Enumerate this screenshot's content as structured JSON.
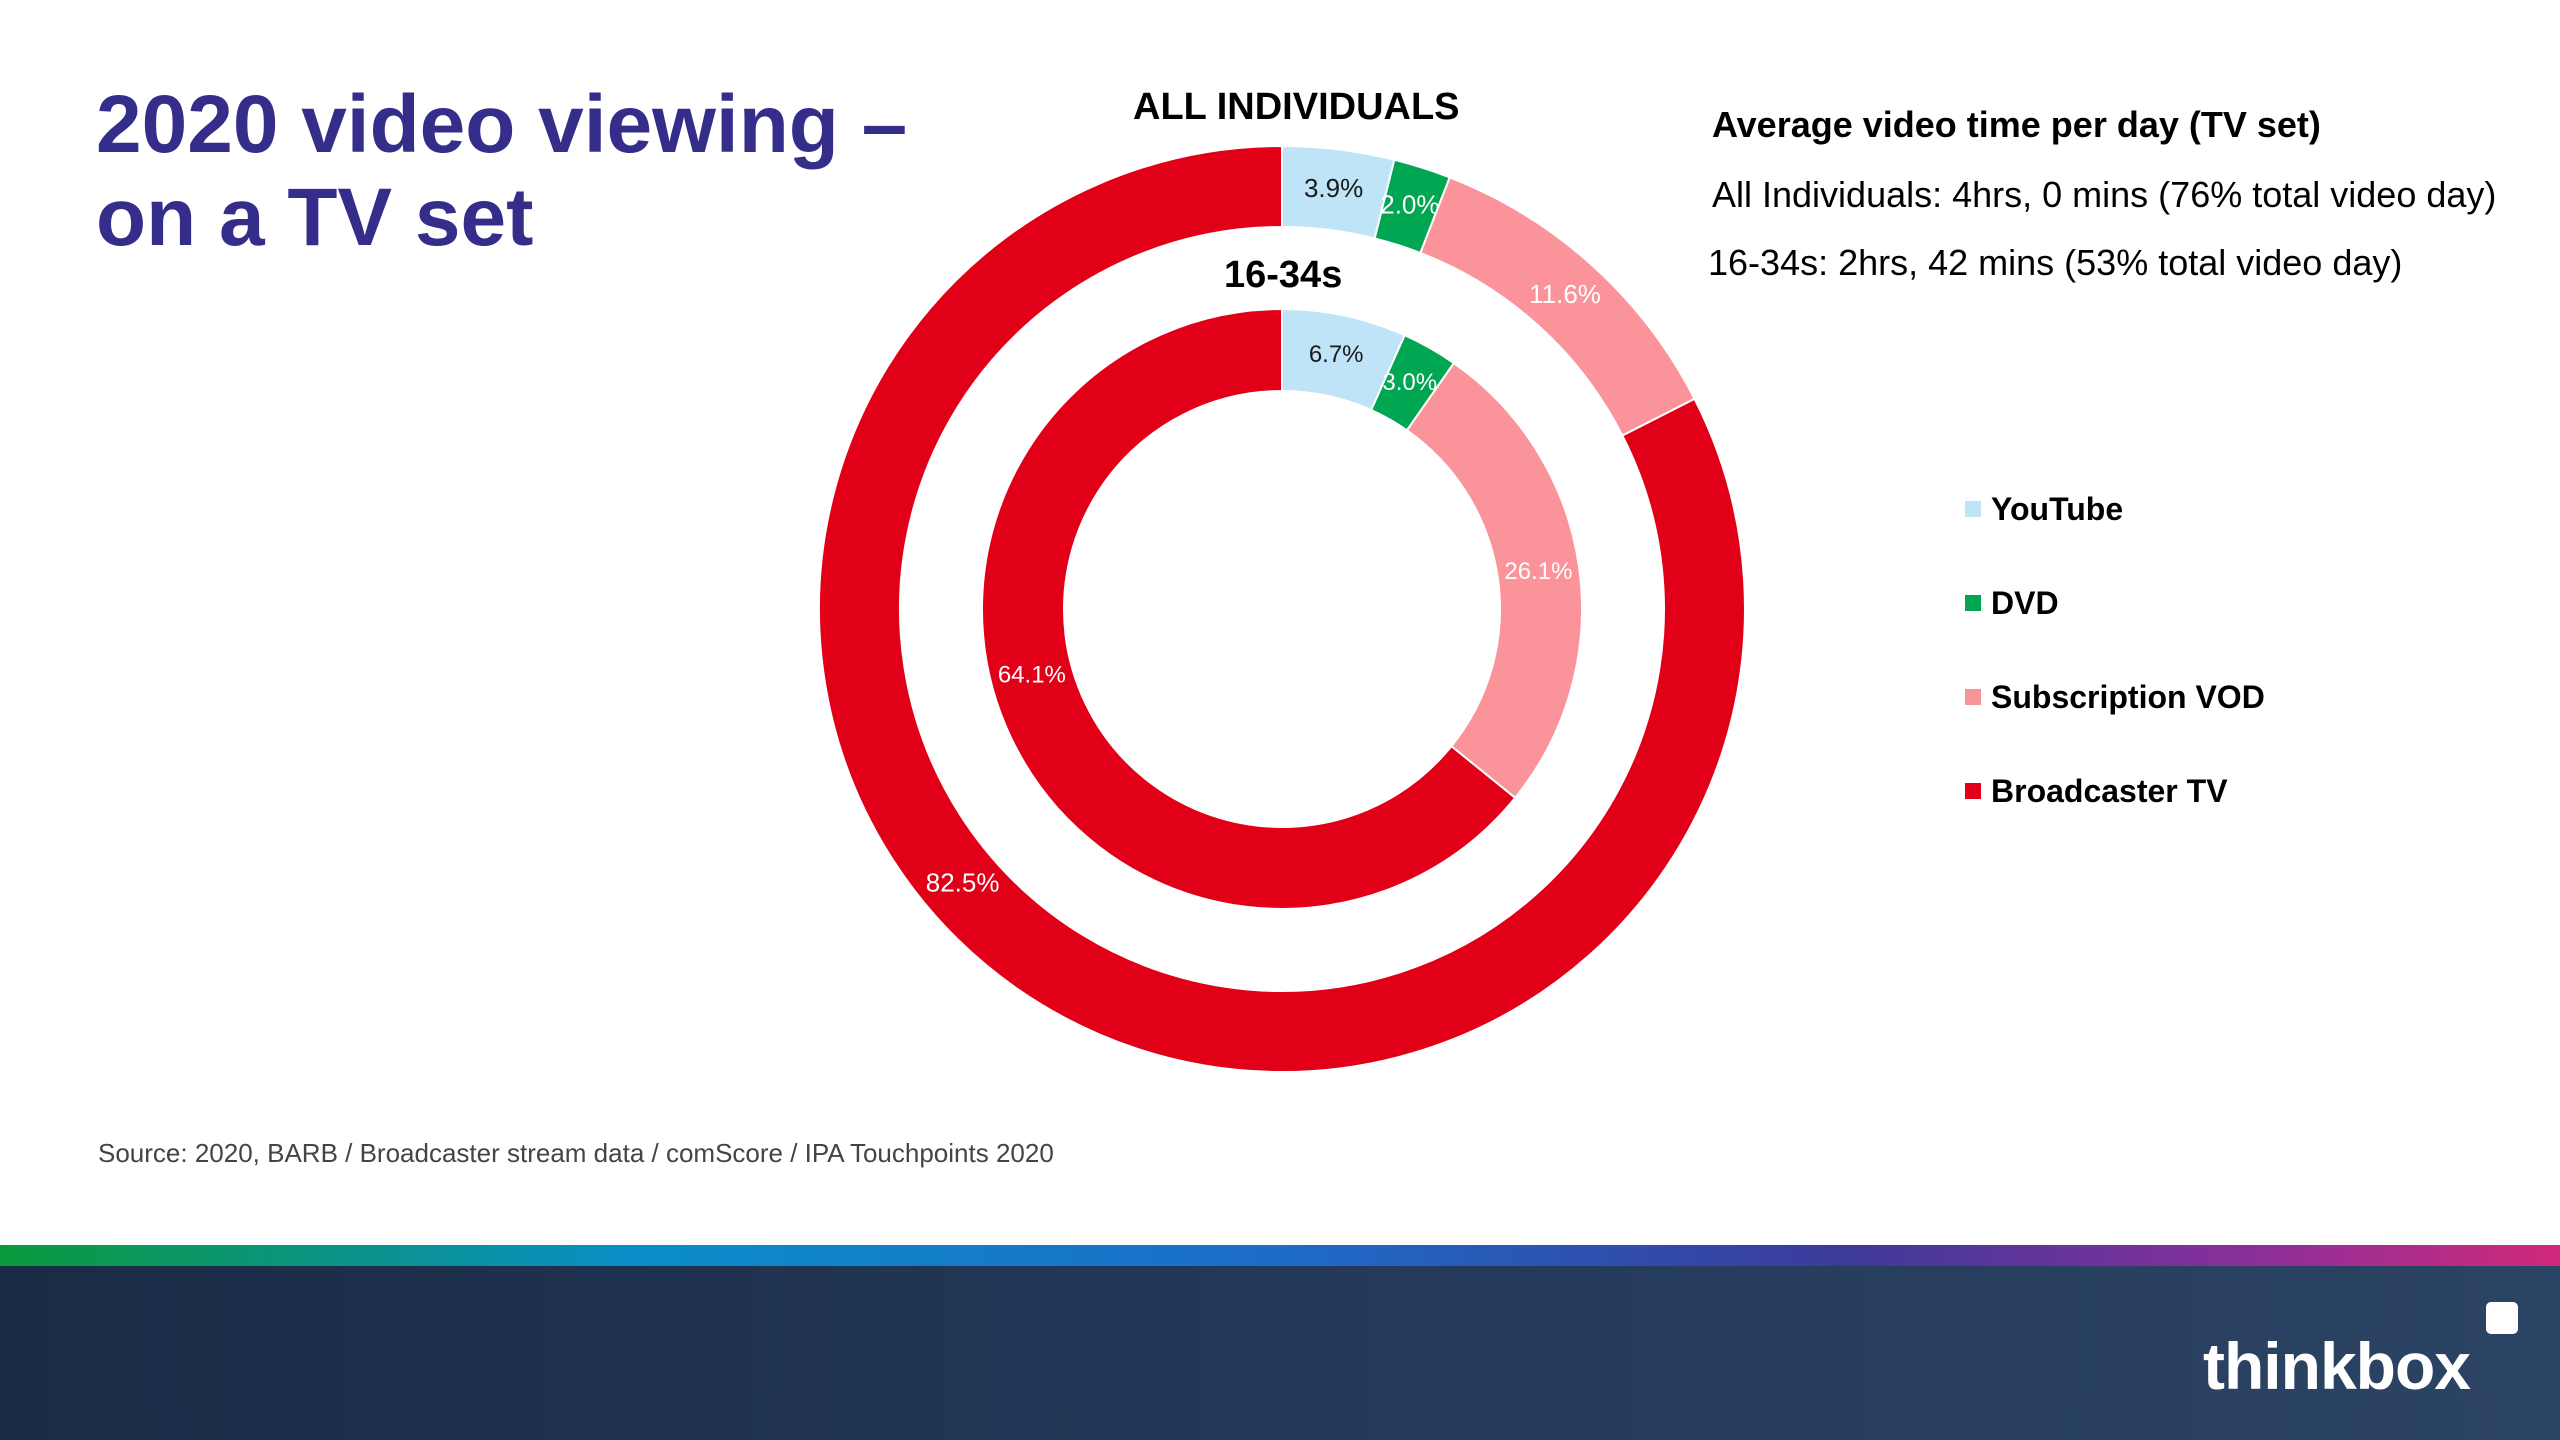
{
  "title": {
    "line1": "2020 video viewing –",
    "line2": "on a TV set"
  },
  "info": {
    "title": "Average video time per day (TV set)",
    "line1": "All Individuals: 4hrs, 0 mins (76% total video day)",
    "line2": "16-34s: 2hrs, 42 mins (53% total video day)"
  },
  "source": "Source: 2020, BARB / Broadcaster stream data / comScore / IPA Touchpoints 2020",
  "logo": "thinkbox",
  "chart_data": {
    "type": "pie",
    "subtype": "nested-donut",
    "categories": [
      "YouTube",
      "DVD",
      "Subscription VOD",
      "Broadcaster TV"
    ],
    "colors": [
      "#bfe3f7",
      "#00a651",
      "#fb939b",
      "#e10017"
    ],
    "legend_position": "right",
    "series": [
      {
        "name": "ALL INDIVIDUALS",
        "values": [
          3.9,
          2.0,
          11.6,
          82.5
        ],
        "labels": [
          "3.9%",
          "2.0%",
          "11.6%",
          "82.5%"
        ]
      },
      {
        "name": "16-34s",
        "values": [
          6.7,
          3.0,
          26.1,
          64.1
        ],
        "labels": [
          "6.7%",
          "3.0%",
          "26.1%",
          "64.1%"
        ]
      }
    ]
  }
}
